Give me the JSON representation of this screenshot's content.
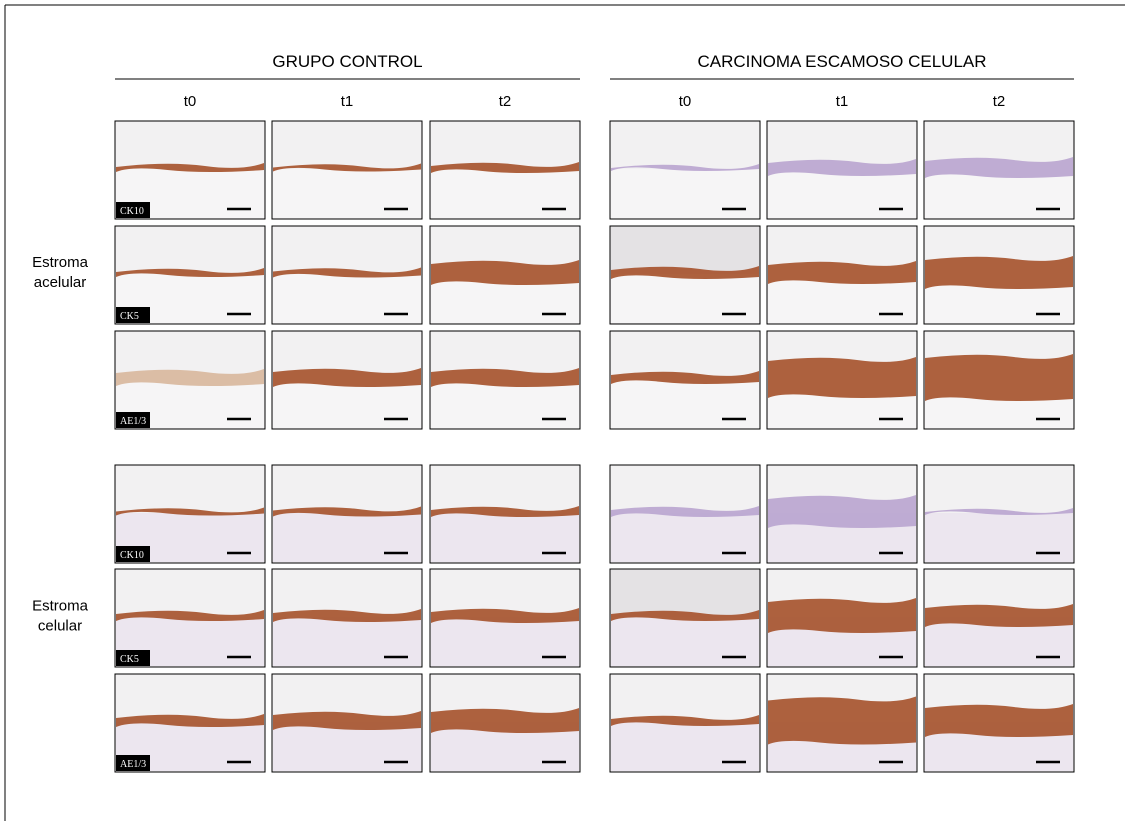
{
  "groups": [
    {
      "title": "GRUPO CONTROL",
      "timepoints": [
        "t0",
        "t1",
        "t2"
      ]
    },
    {
      "title": "CARCINOMA ESCAMOSO CELULAR",
      "timepoints": [
        "t0",
        "t1",
        "t2"
      ]
    }
  ],
  "row_groups": [
    {
      "label": [
        "Estroma",
        "acelular"
      ],
      "stains": [
        "CK10",
        "CK5",
        "AE1/3"
      ]
    },
    {
      "label": [
        "Estroma",
        "celular"
      ],
      "stains": [
        "CK10",
        "CK5",
        "AE1/3"
      ]
    }
  ]
}
